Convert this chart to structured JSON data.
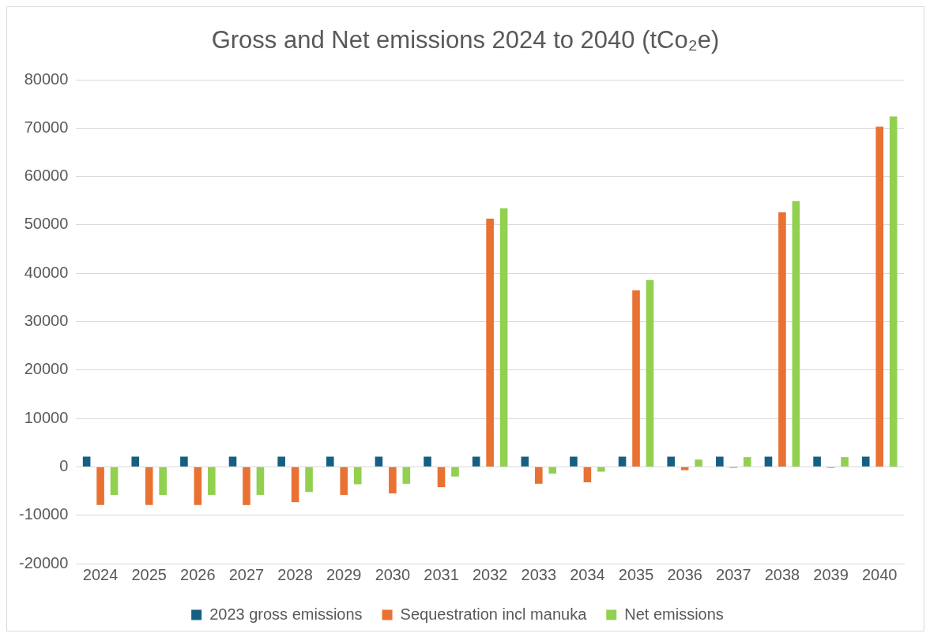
{
  "chart_data": {
    "type": "bar",
    "title": "Gross and Net emissions 2024 to 2040 (tCo₂e)",
    "categories": [
      "2024",
      "2025",
      "2026",
      "2027",
      "2028",
      "2029",
      "2030",
      "2031",
      "2032",
      "2033",
      "2034",
      "2035",
      "2036",
      "2037",
      "2038",
      "2039",
      "2040"
    ],
    "series": [
      {
        "name": "2023 gross emissions",
        "color": "#156082",
        "values": [
          2100,
          2100,
          2100,
          2100,
          2100,
          2100,
          2100,
          2100,
          2100,
          2100,
          2100,
          2100,
          2100,
          2100,
          2100,
          2100,
          2100
        ]
      },
      {
        "name": "Sequestration incl manuka",
        "color": "#e97132",
        "values": [
          -7900,
          -7900,
          -7900,
          -7900,
          -7300,
          -5800,
          -5500,
          -4200,
          51300,
          -3500,
          -3200,
          36500,
          -700,
          -200,
          52600,
          -200,
          70300
        ]
      },
      {
        "name": "Net emissions",
        "color": "#92d050",
        "values": [
          -5800,
          -5800,
          -5800,
          -5800,
          -5200,
          -3600,
          -3500,
          -2000,
          53400,
          -1400,
          -1000,
          38600,
          1500,
          2000,
          54900,
          2000,
          72400
        ]
      }
    ],
    "ylim": [
      -20000,
      80000
    ],
    "yticks": [
      -20000,
      -10000,
      0,
      10000,
      20000,
      30000,
      40000,
      50000,
      60000,
      70000,
      80000
    ],
    "grid": "y",
    "legend": "bottom"
  }
}
